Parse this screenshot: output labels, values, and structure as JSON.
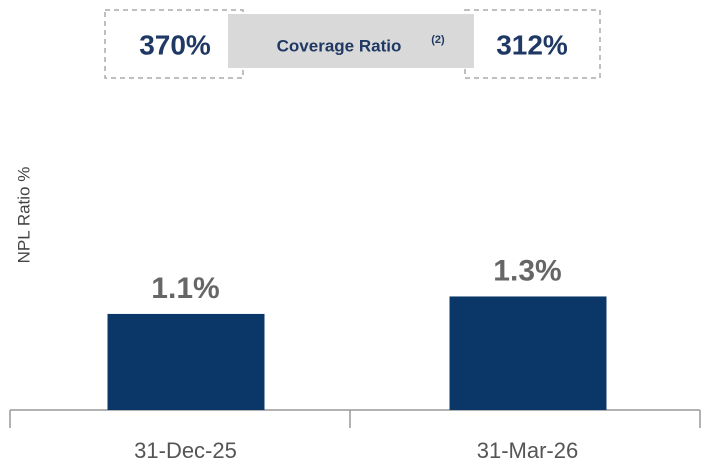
{
  "chart_data": {
    "type": "bar",
    "coverage": {
      "label": "Coverage Ratio",
      "superscript": "(2)",
      "left": "370%",
      "right": "312%"
    },
    "ylabel": "NPL Ratio %",
    "categories": [
      "31-Dec-25",
      "31-Mar-26"
    ],
    "values": [
      1.1,
      1.3
    ],
    "value_labels": [
      "1.1%",
      "1.3%"
    ],
    "color": "#0b3668",
    "ylim": [
      0,
      3
    ]
  }
}
